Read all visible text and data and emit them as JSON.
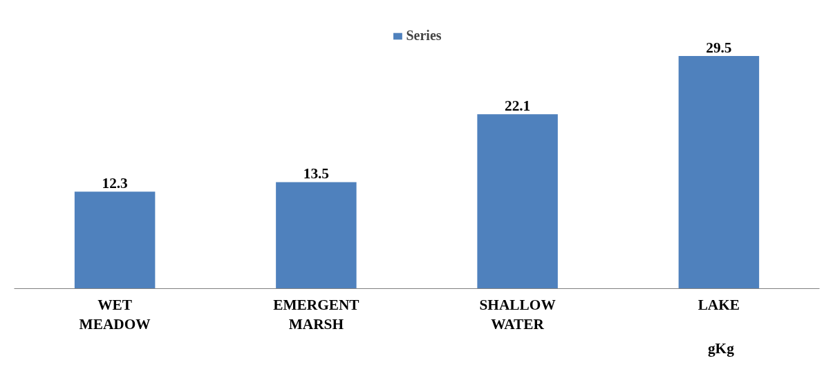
{
  "chart_data": {
    "type": "bar",
    "categories": [
      "WET MEADOW",
      "EMERGENT MARSH",
      "SHALLOW WATER",
      "LAKE"
    ],
    "series": [
      {
        "name": "Series",
        "color": "#4f81bd",
        "values": [
          12.3,
          13.5,
          22.1,
          29.5
        ]
      }
    ],
    "data_labels": true,
    "legend": "top",
    "annotations": [
      "gKg"
    ]
  }
}
